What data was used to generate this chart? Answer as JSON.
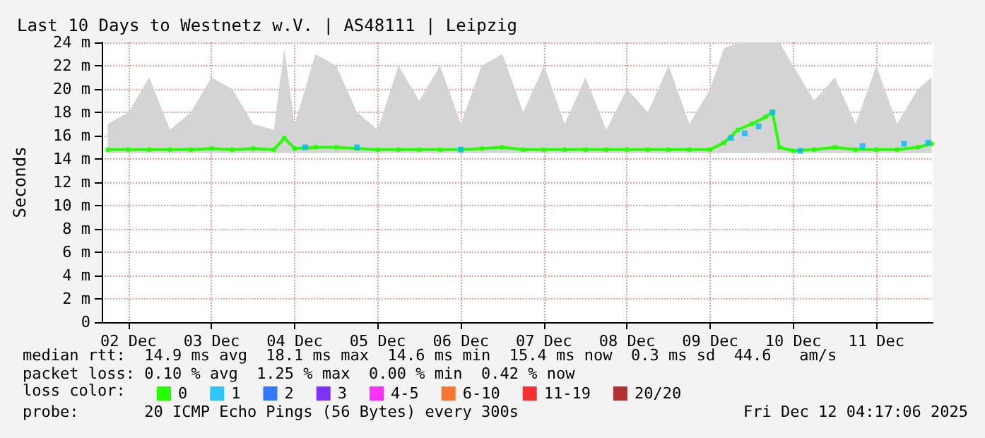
{
  "chart_data": {
    "type": "line",
    "title": "Last 10 Days to Westnetz w.V. | AS48111 | Leipzig",
    "ylabel": "Seconds",
    "legend_title": "loss color:",
    "xlim": [
      "2025-12-02T04:17",
      "2025-12-12T04:17"
    ],
    "xticks": [
      {
        "value": "2025-12-02T12:00",
        "label": "02 Dec"
      },
      {
        "value": "2025-12-03T12:00",
        "label": "03 Dec"
      },
      {
        "value": "2025-12-04T12:00",
        "label": "04 Dec"
      },
      {
        "value": "2025-12-05T12:00",
        "label": "05 Dec"
      },
      {
        "value": "2025-12-06T12:00",
        "label": "06 Dec"
      },
      {
        "value": "2025-12-07T12:00",
        "label": "07 Dec"
      },
      {
        "value": "2025-12-08T12:00",
        "label": "08 Dec"
      },
      {
        "value": "2025-12-09T12:00",
        "label": "09 Dec"
      },
      {
        "value": "2025-12-10T12:00",
        "label": "10 Dec"
      },
      {
        "value": "2025-12-11T12:00",
        "label": "11 Dec"
      }
    ],
    "ylim": [
      0,
      24
    ],
    "yticks": [
      0,
      {
        "value": 2,
        "label": "2 m"
      },
      {
        "value": 4,
        "label": "4 m"
      },
      {
        "value": 6,
        "label": "6 m"
      },
      {
        "value": 8,
        "label": "8 m"
      },
      {
        "value": 10,
        "label": "10 m"
      },
      {
        "value": 12,
        "label": "12 m"
      },
      {
        "value": 14,
        "label": "14 m"
      },
      {
        "value": 16,
        "label": "16 m"
      },
      {
        "value": 18,
        "label": "18 m"
      },
      {
        "value": 20,
        "label": "20 m"
      },
      {
        "value": 22,
        "label": "22 m"
      },
      {
        "value": 24,
        "label": "24 m"
      }
    ],
    "grid": true,
    "legend": "bottom",
    "series": [
      {
        "name": "0",
        "color": "#26ff00",
        "x": [
          "2025-12-02T06:00",
          "2025-12-02T12:00",
          "2025-12-02T18:00",
          "2025-12-03T00:00",
          "2025-12-03T06:00",
          "2025-12-03T12:00",
          "2025-12-03T18:00",
          "2025-12-04T00:00",
          "2025-12-04T06:00",
          "2025-12-04T09:00",
          "2025-12-04T12:00",
          "2025-12-04T18:00",
          "2025-12-05T00:00",
          "2025-12-05T06:00",
          "2025-12-05T12:00",
          "2025-12-05T18:00",
          "2025-12-06T00:00",
          "2025-12-06T06:00",
          "2025-12-06T12:00",
          "2025-12-06T18:00",
          "2025-12-07T00:00",
          "2025-12-07T06:00",
          "2025-12-07T12:00",
          "2025-12-07T18:00",
          "2025-12-08T00:00",
          "2025-12-08T06:00",
          "2025-12-08T12:00",
          "2025-12-08T18:00",
          "2025-12-09T00:00",
          "2025-12-09T06:00",
          "2025-12-09T12:00",
          "2025-12-09T16:00",
          "2025-12-09T20:00",
          "2025-12-10T00:00",
          "2025-12-10T04:00",
          "2025-12-10T06:00",
          "2025-12-10T08:00",
          "2025-12-10T12:00",
          "2025-12-10T18:00",
          "2025-12-11T00:00",
          "2025-12-11T06:00",
          "2025-12-11T12:00",
          "2025-12-11T18:00",
          "2025-12-12T00:00",
          "2025-12-12T04:00"
        ],
        "values": [
          14.8,
          14.8,
          14.8,
          14.8,
          14.8,
          14.9,
          14.8,
          14.9,
          14.8,
          15.8,
          14.9,
          15.0,
          15.0,
          14.9,
          14.8,
          14.8,
          14.8,
          14.8,
          14.8,
          14.9,
          15.0,
          14.8,
          14.8,
          14.8,
          14.8,
          14.8,
          14.8,
          14.8,
          14.8,
          14.8,
          14.8,
          15.4,
          16.5,
          17.0,
          17.6,
          18.0,
          15.0,
          14.7,
          14.8,
          15.0,
          14.8,
          14.8,
          14.8,
          15.0,
          15.3
        ],
        "lower": [
          14.5,
          14.5,
          14.5,
          14.5,
          14.5,
          14.5,
          14.5,
          14.5,
          14.5,
          14.5,
          14.5,
          14.5,
          14.5,
          14.5,
          14.5,
          14.5,
          14.5,
          14.5,
          14.5,
          14.5,
          14.5,
          14.5,
          14.5,
          14.5,
          14.5,
          14.5,
          14.5,
          14.5,
          14.5,
          14.5,
          14.5,
          14.5,
          14.5,
          14.5,
          14.5,
          14.5,
          14.5,
          14.5,
          14.5,
          14.5,
          14.5,
          14.5,
          14.5,
          14.5,
          14.5
        ],
        "upper": [
          17,
          18,
          21,
          16.5,
          18,
          21,
          20,
          17,
          16.5,
          23.5,
          17,
          23,
          22,
          18,
          16.5,
          22,
          19,
          22,
          17,
          22,
          23,
          18,
          22,
          17,
          21,
          16.5,
          20,
          18,
          22,
          17,
          20,
          23.5,
          24,
          24,
          24,
          24,
          24,
          22,
          19,
          21,
          17,
          22,
          17,
          20,
          21
        ]
      },
      {
        "name": "1",
        "type": "scatter",
        "color": "#00b8ff",
        "x": [
          "2025-12-04T15:00",
          "2025-12-05T06:00",
          "2025-12-06T12:00",
          "2025-12-09T18:00",
          "2025-12-09T22:00",
          "2025-12-10T02:00",
          "2025-12-10T06:00",
          "2025-12-10T14:00",
          "2025-12-11T08:00",
          "2025-12-11T20:00",
          "2025-12-12T03:00"
        ],
        "values": [
          15.0,
          15.0,
          14.8,
          15.8,
          16.2,
          16.8,
          18.0,
          14.7,
          15.1,
          15.3,
          15.4
        ]
      },
      {
        "name": "2",
        "type": "scatter",
        "color": "#0059ff"
      },
      {
        "name": "3",
        "type": "scatter",
        "color": "#5e00ff"
      },
      {
        "name": "4-5",
        "type": "scatter",
        "color": "#ff00ff"
      },
      {
        "name": "6-10",
        "type": "scatter",
        "color": "#ff5500"
      },
      {
        "name": "11-19",
        "type": "scatter",
        "color": "#ff0000"
      },
      {
        "name": "20/20",
        "type": "scatter",
        "color": "#a10000"
      }
    ],
    "marker": "square",
    "annotations": [
      "median rtt:  14.9 ms avg  18.1 ms max  14.6 ms min  15.4 ms now  0.3 ms sd  44.6   am/s",
      "packet loss: 0.10 % avg  1.25 % max  0.00 % min  0.42 % now",
      "probe:       20 ICMP Echo Pings (56 Bytes) every 300s",
      "Fri Dec 12 04:17:06 2025"
    ]
  }
}
